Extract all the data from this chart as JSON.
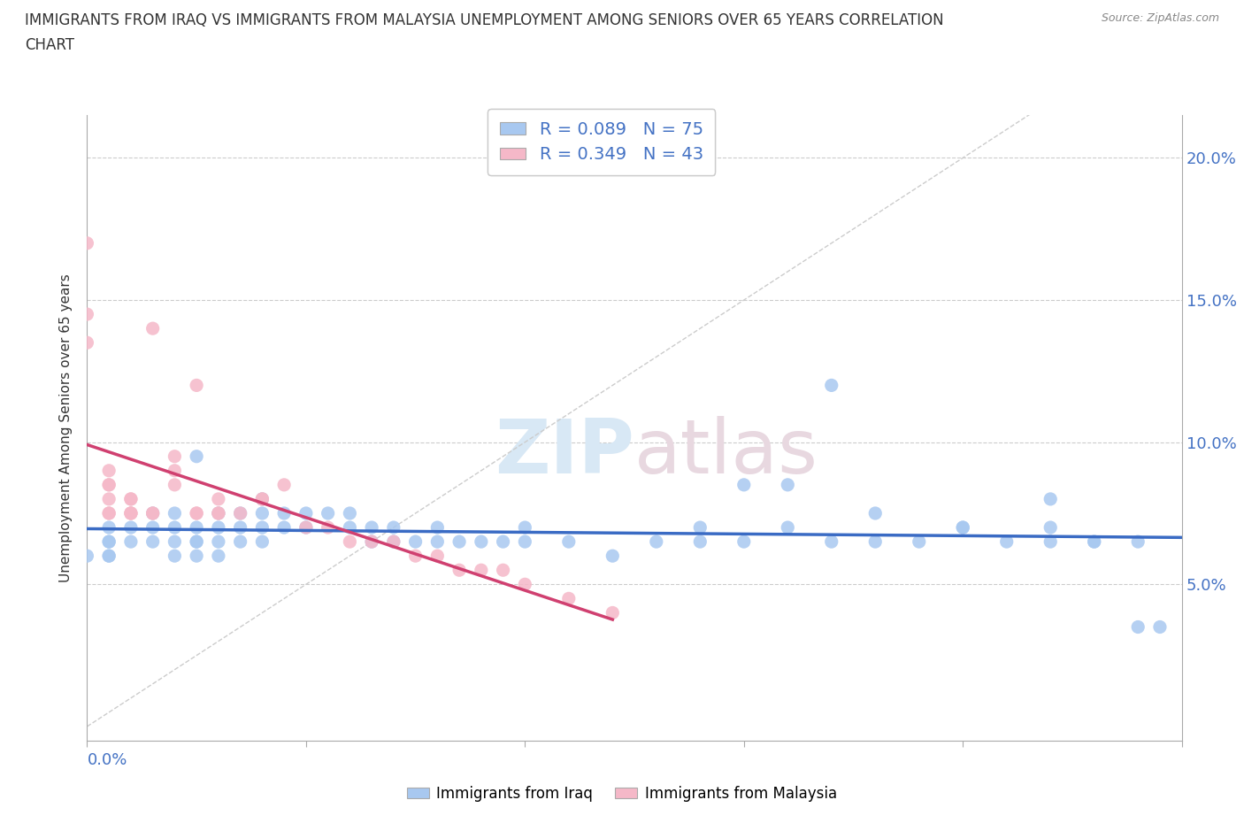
{
  "title_line1": "IMMIGRANTS FROM IRAQ VS IMMIGRANTS FROM MALAYSIA UNEMPLOYMENT AMONG SENIORS OVER 65 YEARS CORRELATION",
  "title_line2": "CHART",
  "source": "Source: ZipAtlas.com",
  "ylabel": "Unemployment Among Seniors over 65 years",
  "xrange": [
    0.0,
    0.25
  ],
  "yrange": [
    -0.005,
    0.215
  ],
  "R_iraq": 0.089,
  "N_iraq": 75,
  "R_malaysia": 0.349,
  "N_malaysia": 43,
  "color_iraq": "#a8c8f0",
  "color_malaysia": "#f5b8c8",
  "trendline_iraq_color": "#3a6bc4",
  "trendline_malaysia_color": "#d04070",
  "watermark_color": "#d8e8f5",
  "watermark_color2": "#e8d8e0",
  "iraq_x": [
    0.0,
    0.005,
    0.005,
    0.005,
    0.005,
    0.005,
    0.01,
    0.01,
    0.015,
    0.015,
    0.015,
    0.02,
    0.02,
    0.02,
    0.02,
    0.025,
    0.025,
    0.025,
    0.025,
    0.025,
    0.03,
    0.03,
    0.03,
    0.03,
    0.035,
    0.035,
    0.035,
    0.04,
    0.04,
    0.04,
    0.04,
    0.045,
    0.045,
    0.05,
    0.05,
    0.055,
    0.06,
    0.06,
    0.065,
    0.065,
    0.07,
    0.07,
    0.075,
    0.08,
    0.08,
    0.085,
    0.09,
    0.095,
    0.1,
    0.1,
    0.11,
    0.12,
    0.13,
    0.14,
    0.14,
    0.15,
    0.16,
    0.17,
    0.18,
    0.19,
    0.2,
    0.21,
    0.22,
    0.23,
    0.24,
    0.15,
    0.16,
    0.17,
    0.18,
    0.2,
    0.22,
    0.24,
    0.22,
    0.23,
    0.245
  ],
  "iraq_y": [
    0.06,
    0.06,
    0.06,
    0.065,
    0.065,
    0.07,
    0.065,
    0.07,
    0.065,
    0.07,
    0.075,
    0.06,
    0.065,
    0.07,
    0.075,
    0.06,
    0.065,
    0.065,
    0.07,
    0.095,
    0.06,
    0.065,
    0.07,
    0.075,
    0.065,
    0.07,
    0.075,
    0.065,
    0.07,
    0.075,
    0.08,
    0.07,
    0.075,
    0.07,
    0.075,
    0.075,
    0.07,
    0.075,
    0.065,
    0.07,
    0.065,
    0.07,
    0.065,
    0.065,
    0.07,
    0.065,
    0.065,
    0.065,
    0.065,
    0.07,
    0.065,
    0.06,
    0.065,
    0.065,
    0.07,
    0.065,
    0.07,
    0.065,
    0.065,
    0.065,
    0.07,
    0.065,
    0.07,
    0.065,
    0.035,
    0.085,
    0.085,
    0.12,
    0.075,
    0.07,
    0.065,
    0.065,
    0.08,
    0.065,
    0.035
  ],
  "malaysia_x": [
    0.0,
    0.0,
    0.0,
    0.005,
    0.005,
    0.005,
    0.005,
    0.005,
    0.005,
    0.01,
    0.01,
    0.01,
    0.01,
    0.01,
    0.015,
    0.015,
    0.015,
    0.02,
    0.02,
    0.02,
    0.025,
    0.025,
    0.025,
    0.03,
    0.03,
    0.03,
    0.035,
    0.04,
    0.04,
    0.045,
    0.05,
    0.055,
    0.06,
    0.065,
    0.07,
    0.075,
    0.08,
    0.085,
    0.09,
    0.095,
    0.1,
    0.11,
    0.12
  ],
  "malaysia_y": [
    0.17,
    0.145,
    0.135,
    0.075,
    0.075,
    0.08,
    0.085,
    0.085,
    0.09,
    0.075,
    0.075,
    0.075,
    0.08,
    0.08,
    0.075,
    0.075,
    0.14,
    0.085,
    0.09,
    0.095,
    0.075,
    0.075,
    0.12,
    0.075,
    0.075,
    0.08,
    0.075,
    0.08,
    0.08,
    0.085,
    0.07,
    0.07,
    0.065,
    0.065,
    0.065,
    0.06,
    0.06,
    0.055,
    0.055,
    0.055,
    0.05,
    0.045,
    0.04
  ]
}
